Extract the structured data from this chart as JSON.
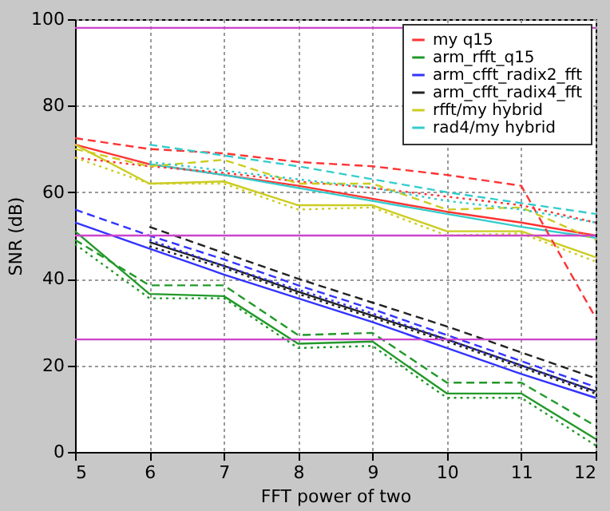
{
  "chart_data": {
    "type": "line",
    "xlabel": "FFT power of two",
    "ylabel": "SNR (dB)",
    "x": [
      5,
      6,
      7,
      8,
      9,
      10,
      11,
      12
    ],
    "xlim": [
      5,
      12
    ],
    "xticks": [
      5,
      6,
      7,
      8,
      9,
      10,
      11,
      12
    ],
    "ylim": [
      0,
      100
    ],
    "yticks": [
      0,
      20,
      40,
      60,
      80,
      100
    ],
    "grid": true,
    "legend": "top right",
    "marker": "none",
    "series": [
      {
        "name": "my q15",
        "color": "#ff3333",
        "line_style": "solid",
        "values": [
          71,
          66.5,
          64,
          61.5,
          58.5,
          55.5,
          53,
          50
        ]
      },
      {
        "name": "arm_rfft_q15",
        "color": "#22992a",
        "line_style": "solid",
        "values": [
          51,
          36.5,
          36,
          25,
          25.5,
          13.5,
          13.5,
          3
        ]
      },
      {
        "name": "arm_cfft_radix2_fft",
        "color": "#3333ff",
        "line_style": "solid",
        "values": [
          53,
          47,
          41,
          35.5,
          30,
          24,
          18,
          12.5
        ]
      },
      {
        "name": "arm_cfft_radix4_fft",
        "color": "#222222",
        "line_style": "solid",
        "values": [
          null,
          48.5,
          43,
          37,
          31.5,
          26,
          20,
          14
        ]
      },
      {
        "name": "rfft/my hybrid",
        "color": "#cccc22",
        "line_style": "solid",
        "values": [
          71,
          62,
          62.5,
          57,
          57,
          51,
          51,
          45
        ]
      },
      {
        "name": "rad4/my hybrid",
        "color": "#33cccc",
        "line_style": "solid",
        "values": [
          null,
          66.5,
          64,
          61,
          58,
          55,
          52,
          49.5
        ]
      },
      {
        "color": "#ff3333",
        "line_style": "dashed",
        "values": [
          72.5,
          70,
          69,
          67,
          66,
          64,
          61.5,
          31
        ]
      },
      {
        "color": "#ff3333",
        "line_style": "dotted",
        "values": [
          68,
          66,
          64.5,
          62.5,
          61,
          59,
          57,
          53
        ]
      },
      {
        "color": "#22992a",
        "line_style": "dashed",
        "values": [
          49,
          38.5,
          38.5,
          27,
          27.5,
          16,
          16,
          6
        ]
      },
      {
        "color": "#22992a",
        "line_style": "dotted",
        "values": [
          48,
          35.5,
          35.5,
          24,
          24.5,
          12.5,
          12.5,
          1.5
        ]
      },
      {
        "color": "#3333ff",
        "line_style": "dashed",
        "values": [
          56,
          50,
          44.5,
          38.5,
          33,
          27,
          21,
          15
        ]
      },
      {
        "color": "#3333ff",
        "line_style": "dotted",
        "values": [
          null,
          49,
          43,
          37.5,
          32,
          26,
          20,
          14
        ]
      },
      {
        "color": "#222222",
        "line_style": "dashed",
        "values": [
          null,
          52,
          46,
          40,
          34.5,
          29,
          23,
          17
        ]
      },
      {
        "color": "#222222",
        "line_style": "dotted",
        "values": [
          null,
          47.5,
          42.5,
          36.5,
          31,
          25.5,
          19.5,
          13.5
        ]
      },
      {
        "color": "#cccc22",
        "line_style": "dashed",
        "values": [
          70,
          66,
          67.5,
          62,
          62,
          56,
          56.5,
          49
        ]
      },
      {
        "color": "#cccc22",
        "line_style": "dotted",
        "values": [
          68,
          62,
          62,
          56,
          56.5,
          50,
          50.5,
          44
        ]
      },
      {
        "color": "#33cccc",
        "line_style": "dashed",
        "values": [
          null,
          71,
          68.5,
          66,
          63,
          60,
          57.5,
          55
        ]
      },
      {
        "color": "#33cccc",
        "line_style": "dotted",
        "values": [
          null,
          67,
          65,
          63,
          61,
          58,
          56,
          53
        ]
      }
    ],
    "ref_lines": [
      {
        "axis": "y",
        "value": 98,
        "color": "#cc44cc"
      },
      {
        "axis": "y",
        "value": 50,
        "color": "#cc44cc"
      },
      {
        "axis": "y",
        "value": 26,
        "color": "#cc44cc"
      }
    ]
  }
}
